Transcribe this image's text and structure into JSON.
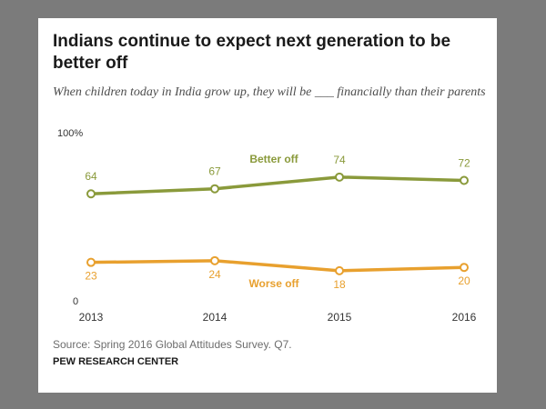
{
  "header": {
    "title": "Indians continue to expect next generation to be better off",
    "subtitle": "When children today in India grow up, they will be ___ financially than their parents"
  },
  "footer": {
    "source": "Source: Spring 2016 Global Attitudes Survey. Q7.",
    "org": "PEW RESEARCH CENTER"
  },
  "colors": {
    "better": "#8a9a3b",
    "worse": "#e8a02e",
    "axis_text": "#333333"
  },
  "chart_data": {
    "type": "line",
    "title": "Indians continue to expect next generation to be better off",
    "categories": [
      "2013",
      "2014",
      "2015",
      "2016"
    ],
    "ylim": [
      0,
      100
    ],
    "y_tick_labels": [
      "100%",
      "0"
    ],
    "xlabel": "",
    "ylabel": "",
    "series": [
      {
        "name": "Better off",
        "values": [
          64,
          67,
          74,
          72
        ],
        "labels": [
          "64",
          "67",
          "74",
          "72"
        ]
      },
      {
        "name": "Worse off",
        "values": [
          23,
          24,
          18,
          20
        ],
        "labels": [
          "23",
          "24",
          "18",
          "20"
        ]
      }
    ]
  }
}
